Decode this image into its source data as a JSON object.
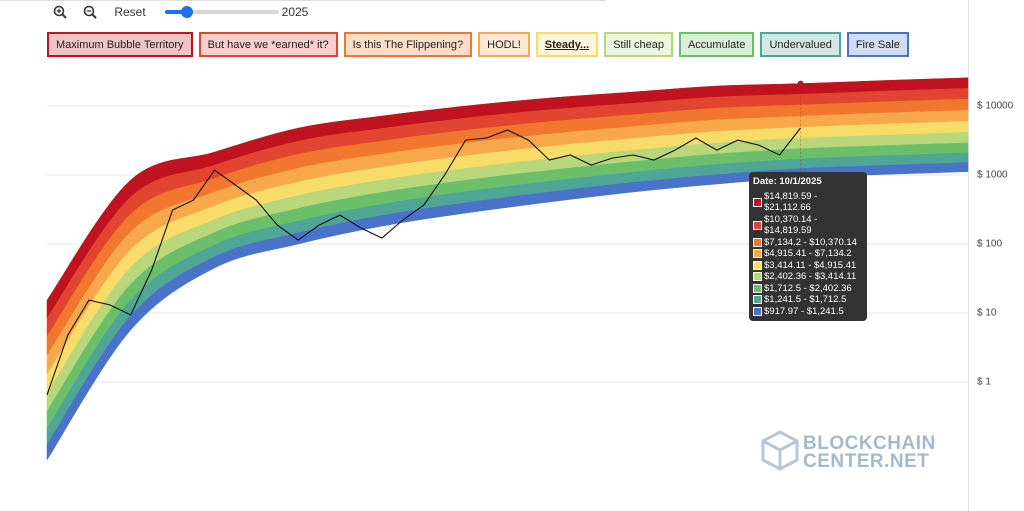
{
  "controls": {
    "reset": "Reset",
    "slider_label": "2025"
  },
  "watermark": {
    "line1": "BLOCKCHAIN",
    "line2": "CENTER.NET"
  },
  "chart_data": {
    "type": "area",
    "log_scale": true,
    "grid": true,
    "ylim": [
      0.05,
      40000
    ],
    "yticks": [
      {
        "value": 10000,
        "label": "$ 10000"
      },
      {
        "value": 1000,
        "label": "$ 1000"
      },
      {
        "value": 100,
        "label": "$ 100"
      },
      {
        "value": 10,
        "label": "$ 10"
      },
      {
        "value": 1,
        "label": "$ 1"
      }
    ],
    "series": [
      {
        "name": "Maximum Bubble Territory",
        "color": "#c1121f",
        "values": [
          15.4,
          847,
          2153,
          4797,
          7161,
          10000,
          13060,
          15960,
          19500,
          21112.66,
          23440,
          25700
        ]
      },
      {
        "name": "But have we *earned* it?",
        "color": "#e2452f",
        "values": [
          8.43,
          481,
          1390,
          3097,
          4732,
          6683,
          8830,
          10940,
          13490,
          14819.59,
          16440,
          18030
        ]
      },
      {
        "name": "Is this The Flippening?",
        "color": "#f0772d",
        "values": [
          4.59,
          272,
          893,
          1991,
          3112,
          4446,
          5940,
          7480,
          9290,
          10370.14,
          11510,
          12620
        ]
      },
      {
        "name": "HODL!",
        "color": "#f6a84a",
        "values": [
          2.43,
          150,
          564,
          1256,
          2009,
          2904,
          3940,
          5040,
          6300,
          7134.2,
          7930,
          8690
        ]
      },
      {
        "name": "Steady...",
        "color": "#f8dc6a",
        "selected": true,
        "values": [
          1.29,
          82.6,
          356,
          793,
          1300,
          1901,
          2600,
          3380,
          4270,
          4915.41,
          5470,
          6000
        ]
      },
      {
        "name": "Still cheap",
        "color": "#b7d77a",
        "values": [
          0.69,
          46.0,
          226,
          505,
          845,
          1250,
          1730,
          2290,
          2910,
          3414.11,
          3780,
          4150
        ]
      },
      {
        "name": "Accumulate",
        "color": "#6cbf6a",
        "values": [
          0.379,
          26.2,
          147,
          327,
          561,
          839,
          1170,
          1570,
          2020,
          2402.36,
          2670,
          2920
        ]
      },
      {
        "name": "Undervalued",
        "color": "#4fa596",
        "values": [
          0.214,
          15.4,
          96.8,
          216,
          378,
          573,
          811,
          1100,
          1420,
          1712.5,
          1910,
          2090
        ]
      },
      {
        "name": "Fire Sale",
        "color": "#4a72c8",
        "values": [
          0.124,
          9.18,
          65.0,
          145,
          259,
          396,
          568,
          782,
          1010,
          1241.5,
          1380,
          1520
        ]
      }
    ],
    "floor": [
      0.0741,
      5.68,
      44.9,
      100,
      182,
      281,
      406,
      568,
      741,
      917.97,
      1020,
      1120
    ],
    "price": {
      "color": "#111111",
      "values": [
        0.65,
        4.8,
        15.4,
        13.1,
        9.4,
        42,
        311,
        434,
        1180,
        716,
        434,
        188,
        114,
        188,
        263,
        171,
        122,
        223,
        367,
        1000,
        3210,
        3440,
        4490,
        3210,
        1650,
        1950,
        1400,
        1760,
        1950,
        1650,
        2300,
        3440,
        2300,
        3210,
        2720,
        1950,
        4800
      ]
    },
    "tooltip": {
      "index": 9,
      "date": "Date: 10/1/2025",
      "rows": [
        "$14,819.59 - $21,112.66",
        "$10,370.14 - $14,819.59",
        "$7,134.2 - $10,370.14",
        "$4,915.41 - $7,134.2",
        "$3,414.11 - $4,915.41",
        "$2,402.36 - $3,414.11",
        "$1,712.5 - $2,402.36",
        "$1,241.5 - $1,712.5",
        "$917.97 - $1,241.5"
      ]
    }
  }
}
